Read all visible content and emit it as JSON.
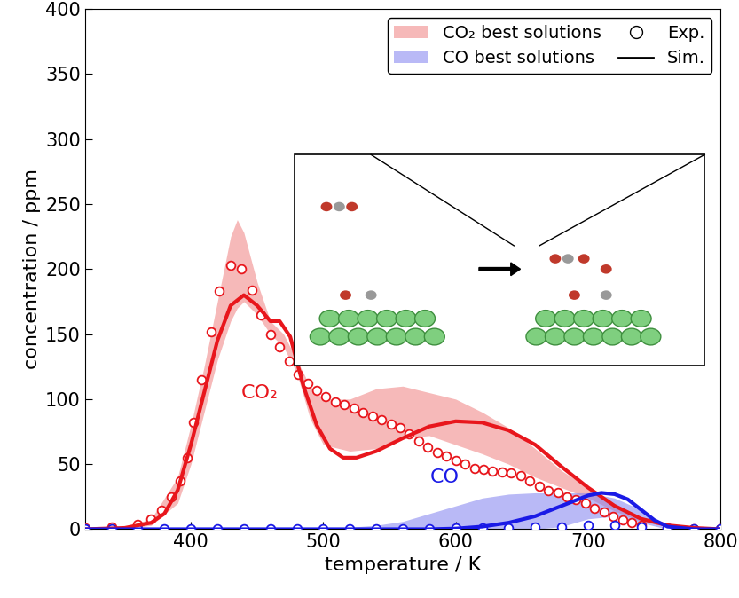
{
  "chart_data": {
    "type": "line",
    "x_label": "temperature / K",
    "y_label": "concentration / ppm",
    "xlim": [
      320,
      800
    ],
    "ylim": [
      0,
      400
    ],
    "xticks": [
      400,
      500,
      600,
      700,
      800
    ],
    "yticks": [
      0,
      50,
      100,
      150,
      200,
      250,
      300,
      350,
      400
    ],
    "legend": "upper right",
    "series": [
      {
        "name": "CO₂ best solutions",
        "type": "area",
        "color": "#f08080",
        "x": [
          320,
          350,
          370,
          390,
          400,
          410,
          420,
          430,
          435,
          440,
          450,
          460,
          470,
          480,
          490,
          500,
          520,
          540,
          560,
          580,
          600,
          620,
          640,
          660,
          680,
          700,
          720,
          740,
          760,
          780,
          800
        ],
        "lower": [
          0,
          0,
          3,
          20,
          50,
          90,
          130,
          160,
          170,
          175,
          165,
          150,
          140,
          120,
          85,
          65,
          60,
          62,
          70,
          72,
          65,
          58,
          50,
          40,
          32,
          24,
          14,
          6,
          2,
          0,
          0
        ],
        "upper": [
          1,
          2,
          8,
          40,
          80,
          125,
          175,
          225,
          238,
          228,
          190,
          160,
          150,
          130,
          110,
          100,
          100,
          108,
          110,
          105,
          100,
          90,
          78,
          62,
          45,
          32,
          18,
          8,
          3,
          1,
          0
        ]
      },
      {
        "name": "CO best solutions",
        "type": "area",
        "color": "#8080f0",
        "x": [
          500,
          540,
          560,
          580,
          600,
          620,
          640,
          660,
          680,
          700,
          720,
          740,
          760,
          780
        ],
        "lower": [
          0,
          0,
          0,
          0,
          0,
          0,
          0,
          0,
          2,
          8,
          10,
          5,
          0,
          0
        ],
        "upper": [
          0,
          3,
          6,
          12,
          18,
          24,
          27,
          28,
          28,
          28,
          24,
          15,
          2,
          0
        ]
      },
      {
        "name": "Exp.",
        "type": "scatter",
        "marker": "o",
        "color": "#000000",
        "curves": [
          {
            "color": "#e8161c",
            "x": [
              320,
              340,
              360,
              370,
              378,
              385,
              392,
              397,
              402,
              408,
              415,
              421,
              430,
              438,
              446,
              453,
              460,
              467,
              474,
              481,
              488,
              495,
              502,
              509,
              516,
              523,
              530,
              537,
              544,
              551,
              558,
              565,
              572,
              579,
              586,
              593,
              600,
              607,
              614,
              621,
              628,
              635,
              642,
              649,
              656,
              663,
              670,
              677,
              684,
              691,
              698,
              705,
              712,
              719,
              726,
              733,
              740,
              760,
              780,
              800
            ],
            "values": [
              1,
              2,
              4,
              8,
              15,
              25,
              37,
              55,
              82,
              115,
              152,
              183,
              203,
              200,
              184,
              165,
              150,
              140,
              129,
              119,
              112,
              107,
              102,
              98,
              96,
              93,
              90,
              87,
              84,
              81,
              78,
              73,
              68,
              63,
              59,
              56,
              53,
              50,
              47,
              46,
              45,
              44,
              43,
              41,
              37,
              33,
              30,
              28,
              25,
              23,
              20,
              16,
              13,
              10,
              7,
              5,
              3,
              1,
              0,
              0
            ]
          },
          {
            "color": "#1a1ae6",
            "x": [
              320,
              340,
              360,
              380,
              400,
              420,
              440,
              460,
              480,
              500,
              520,
              540,
              560,
              580,
              600,
              620,
              640,
              660,
              680,
              700,
              720,
              740,
              760,
              780,
              800
            ],
            "values": [
              0,
              0,
              0,
              0,
              0,
              0,
              0,
              0,
              0,
              0,
              0,
              0,
              0,
              0,
              1,
              1,
              1,
              2,
              2,
              3,
              3,
              2,
              1,
              0,
              0
            ]
          }
        ]
      },
      {
        "name": "Sim.",
        "type": "line",
        "line_style": "solid",
        "color": "#000000",
        "curves": [
          {
            "color": "#e8161c",
            "x": [
              320,
              350,
              370,
              380,
              390,
              400,
              410,
              420,
              430,
              440,
              450,
              460,
              467,
              475,
              485,
              495,
              505,
              515,
              525,
              540,
              560,
              580,
              600,
              620,
              640,
              660,
              680,
              700,
              720,
              740,
              760,
              780,
              800
            ],
            "values": [
              0,
              1,
              5,
              12,
              30,
              65,
              105,
              145,
              172,
              180,
              172,
              160,
              160,
              148,
              110,
              80,
              62,
              55,
              55,
              60,
              70,
              79,
              83,
              82,
              76,
              65,
              48,
              32,
              18,
              8,
              3,
              1,
              0
            ]
          },
          {
            "color": "#1a1ae6",
            "x": [
              320,
              500,
              580,
              600,
              620,
              640,
              660,
              680,
              700,
              710,
              720,
              730,
              740,
              750,
              760,
              780,
              800
            ],
            "values": [
              0,
              0,
              0,
              0.5,
              2,
              5,
              10,
              18,
              26,
              28,
              27,
              23,
              15,
              7,
              2,
              0,
              0
            ]
          }
        ]
      }
    ],
    "annotations": [
      {
        "text": "CO₂",
        "x": 452,
        "y": 105,
        "color": "#e8161c"
      },
      {
        "text": "CO",
        "x": 592,
        "y": 40,
        "color": "#1a1ae6"
      }
    ]
  }
}
